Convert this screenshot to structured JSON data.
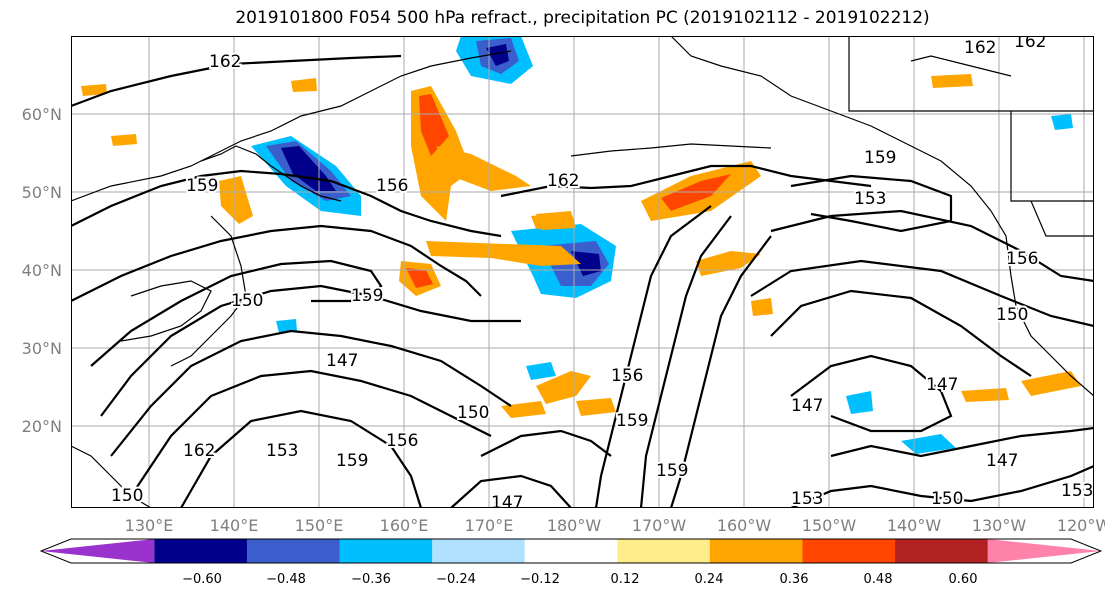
{
  "title": "2019101800 F054 500 hPa refract., precipitation PC (2019102112 - 2019102212)",
  "lat_labels": [
    "60°N",
    "50°N",
    "40°N",
    "30°N",
    "20°N"
  ],
  "lon_labels": [
    "130°E",
    "140°E",
    "150°E",
    "160°E",
    "170°E",
    "180°W",
    "170°W",
    "160°W",
    "150°W",
    "140°W",
    "130°W",
    "120°W"
  ],
  "contour_labels": [
    "162",
    "159",
    "156",
    "153",
    "150",
    "147"
  ],
  "colorbar": {
    "tick_labels": [
      "−0.60",
      "−0.48",
      "−0.36",
      "−0.24",
      "−0.12",
      "0.12",
      "0.24",
      "0.36",
      "0.48",
      "0.60"
    ],
    "colors": [
      "#9a32cd",
      "#00008b",
      "#3a5fcd",
      "#00bfff",
      "#b0e2ff",
      "#ffffff",
      "#ffec8b",
      "#ffa500",
      "#ff4500",
      "#b22222",
      "#ff82ab"
    ]
  }
}
